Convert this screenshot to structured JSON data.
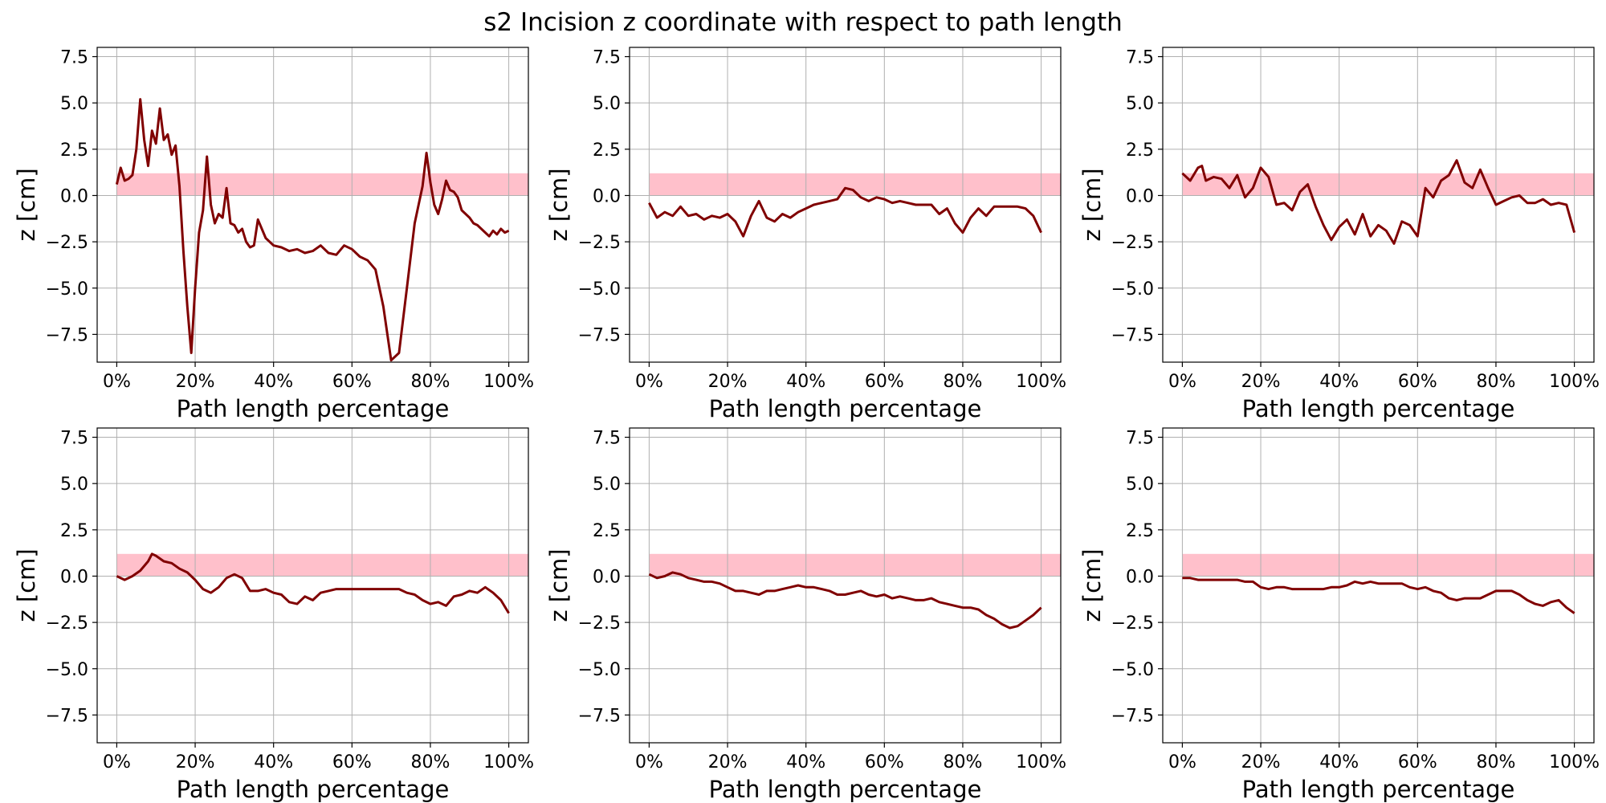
{
  "title": "s2 Incision z coordinate with respect to path length",
  "chart_data": [
    {
      "type": "line",
      "xlabel": "Path length percentage",
      "ylabel": "z [cm]",
      "xlim": [
        -5,
        105
      ],
      "ylim": [
        -9,
        8
      ],
      "xticks": [
        "0%",
        "20%",
        "40%",
        "60%",
        "80%",
        "100%"
      ],
      "yticks": [
        "7.5",
        "5.0",
        "2.5",
        "0.0",
        "−2.5",
        "−5.0",
        "−7.5"
      ],
      "grid": true,
      "band": {
        "x": [
          0,
          105
        ],
        "y": [
          0,
          1.2
        ],
        "color": "#ffc0cb"
      },
      "series": [
        {
          "color": "#800000",
          "x": [
            0,
            1,
            2,
            3,
            4,
            5,
            6,
            7,
            8,
            9,
            10,
            11,
            12,
            13,
            14,
            15,
            16,
            17,
            18,
            19,
            20,
            21,
            22,
            23,
            24,
            25,
            26,
            27,
            28,
            29,
            30,
            31,
            32,
            33,
            34,
            35,
            36,
            38,
            40,
            42,
            44,
            46,
            48,
            50,
            52,
            54,
            56,
            58,
            60,
            62,
            64,
            66,
            68,
            70,
            72,
            74,
            76,
            78,
            79,
            80,
            81,
            82,
            83,
            84,
            85,
            86,
            87,
            88,
            89,
            90,
            91,
            92,
            93,
            94,
            95,
            96,
            97,
            98,
            99,
            100
          ],
          "y": [
            0.6,
            1.5,
            0.8,
            0.9,
            1.1,
            2.5,
            5.2,
            3,
            1.6,
            3.5,
            2.8,
            4.7,
            3,
            3.3,
            2.2,
            2.7,
            0.5,
            -3,
            -6,
            -8.5,
            -5,
            -2,
            -0.8,
            2.1,
            -0.5,
            -1.5,
            -1,
            -1.2,
            0.4,
            -1.5,
            -1.6,
            -2,
            -1.8,
            -2.5,
            -2.8,
            -2.7,
            -1.3,
            -2.3,
            -2.7,
            -2.8,
            -3,
            -2.9,
            -3.1,
            -3,
            -2.7,
            -3.1,
            -3.2,
            -2.7,
            -2.9,
            -3.3,
            -3.5,
            -4,
            -6,
            -8.9,
            -8.5,
            -5,
            -1.5,
            0.5,
            2.3,
            0.7,
            -0.5,
            -1,
            -0.2,
            0.8,
            0.3,
            0.2,
            -0.1,
            -0.8,
            -1,
            -1.2,
            -1.5,
            -1.6,
            -1.8,
            -2,
            -2.2,
            -1.9,
            -2.1,
            -1.8,
            -2,
            -1.9
          ]
        }
      ]
    },
    {
      "type": "line",
      "xlabel": "Path length percentage",
      "ylabel": "z [cm]",
      "xlim": [
        -5,
        105
      ],
      "ylim": [
        -9,
        8
      ],
      "xticks": [
        "0%",
        "20%",
        "40%",
        "60%",
        "80%",
        "100%"
      ],
      "yticks": [
        "7.5",
        "5.0",
        "2.5",
        "0.0",
        "−2.5",
        "−5.0",
        "−7.5"
      ],
      "grid": true,
      "band": {
        "x": [
          0,
          105
        ],
        "y": [
          0,
          1.2
        ],
        "color": "#ffc0cb"
      },
      "series": [
        {
          "color": "#800000",
          "x": [
            0,
            2,
            4,
            6,
            8,
            10,
            12,
            14,
            16,
            18,
            20,
            22,
            24,
            26,
            28,
            30,
            32,
            34,
            36,
            38,
            40,
            42,
            44,
            46,
            48,
            50,
            52,
            54,
            56,
            58,
            60,
            62,
            64,
            66,
            68,
            70,
            72,
            74,
            76,
            78,
            80,
            82,
            84,
            86,
            88,
            90,
            92,
            94,
            96,
            98,
            100
          ],
          "y": [
            -0.4,
            -1.2,
            -0.9,
            -1.1,
            -0.6,
            -1.1,
            -1,
            -1.3,
            -1.1,
            -1.2,
            -1,
            -1.4,
            -2.2,
            -1.1,
            -0.3,
            -1.2,
            -1.4,
            -1,
            -1.2,
            -0.9,
            -0.7,
            -0.5,
            -0.4,
            -0.3,
            -0.2,
            0.4,
            0.3,
            -0.1,
            -0.3,
            -0.1,
            -0.2,
            -0.4,
            -0.3,
            -0.4,
            -0.5,
            -0.5,
            -0.5,
            -1,
            -0.7,
            -1.5,
            -2,
            -1.2,
            -0.7,
            -1.1,
            -0.6,
            -0.6,
            -0.6,
            -0.6,
            -0.7,
            -1.1,
            -2
          ]
        }
      ]
    },
    {
      "type": "line",
      "xlabel": "Path length percentage",
      "ylabel": "z [cm]",
      "xlim": [
        -5,
        105
      ],
      "ylim": [
        -9,
        8
      ],
      "xticks": [
        "0%",
        "20%",
        "40%",
        "60%",
        "80%",
        "100%"
      ],
      "yticks": [
        "7.5",
        "5.0",
        "2.5",
        "0.0",
        "−2.5",
        "−5.0",
        "−7.5"
      ],
      "grid": true,
      "band": {
        "x": [
          0,
          105
        ],
        "y": [
          0,
          1.2
        ],
        "color": "#ffc0cb"
      },
      "series": [
        {
          "color": "#800000",
          "x": [
            0,
            2,
            4,
            5,
            6,
            8,
            10,
            12,
            14,
            16,
            18,
            20,
            22,
            24,
            26,
            28,
            30,
            32,
            34,
            36,
            38,
            40,
            42,
            44,
            46,
            48,
            50,
            52,
            54,
            56,
            58,
            60,
            62,
            64,
            66,
            68,
            70,
            72,
            74,
            76,
            78,
            80,
            82,
            84,
            86,
            88,
            90,
            92,
            94,
            96,
            98,
            100
          ],
          "y": [
            1.2,
            0.8,
            1.5,
            1.6,
            0.8,
            1,
            0.9,
            0.4,
            1.1,
            -0.1,
            0.4,
            1.5,
            1,
            -0.5,
            -0.4,
            -0.8,
            0.2,
            0.6,
            -0.6,
            -1.6,
            -2.4,
            -1.7,
            -1.3,
            -2.1,
            -1,
            -2.2,
            -1.6,
            -1.9,
            -2.6,
            -1.4,
            -1.6,
            -2.2,
            0.4,
            -0.1,
            0.8,
            1.1,
            1.9,
            0.7,
            0.4,
            1.4,
            0.4,
            -0.5,
            -0.3,
            -0.1,
            0,
            -0.4,
            -0.4,
            -0.2,
            -0.5,
            -0.4,
            -0.5,
            -2
          ]
        }
      ]
    },
    {
      "type": "line",
      "xlabel": "Path length percentage",
      "ylabel": "z [cm]",
      "xlim": [
        -5,
        105
      ],
      "ylim": [
        -9,
        8
      ],
      "xticks": [
        "0%",
        "20%",
        "40%",
        "60%",
        "80%",
        "100%"
      ],
      "yticks": [
        "7.5",
        "5.0",
        "2.5",
        "0.0",
        "−2.5",
        "−5.0",
        "−7.5"
      ],
      "grid": true,
      "band": {
        "x": [
          0,
          105
        ],
        "y": [
          0,
          1.2
        ],
        "color": "#ffc0cb"
      },
      "series": [
        {
          "color": "#800000",
          "x": [
            0,
            2,
            4,
            6,
            8,
            9,
            10,
            12,
            14,
            16,
            18,
            20,
            22,
            24,
            26,
            28,
            30,
            32,
            34,
            36,
            38,
            40,
            42,
            44,
            46,
            48,
            50,
            52,
            54,
            56,
            58,
            60,
            62,
            64,
            66,
            68,
            70,
            72,
            74,
            76,
            78,
            80,
            82,
            84,
            86,
            88,
            90,
            92,
            94,
            96,
            98,
            100
          ],
          "y": [
            0,
            -0.2,
            0,
            0.3,
            0.8,
            1.2,
            1.1,
            0.8,
            0.7,
            0.4,
            0.2,
            -0.2,
            -0.7,
            -0.9,
            -0.6,
            -0.1,
            0.1,
            -0.1,
            -0.8,
            -0.8,
            -0.7,
            -0.9,
            -1,
            -1.4,
            -1.5,
            -1.1,
            -1.3,
            -0.9,
            -0.8,
            -0.7,
            -0.7,
            -0.7,
            -0.7,
            -0.7,
            -0.7,
            -0.7,
            -0.7,
            -0.7,
            -0.9,
            -1,
            -1.3,
            -1.5,
            -1.4,
            -1.6,
            -1.1,
            -1,
            -0.8,
            -0.9,
            -0.6,
            -0.9,
            -1.3,
            -2
          ]
        }
      ]
    },
    {
      "type": "line",
      "xlabel": "Path length percentage",
      "ylabel": "z [cm]",
      "xlim": [
        -5,
        105
      ],
      "ylim": [
        -9,
        8
      ],
      "xticks": [
        "0%",
        "20%",
        "40%",
        "60%",
        "80%",
        "100%"
      ],
      "yticks": [
        "7.5",
        "5.0",
        "2.5",
        "0.0",
        "−2.5",
        "−5.0",
        "−7.5"
      ],
      "grid": true,
      "band": {
        "x": [
          0,
          105
        ],
        "y": [
          0,
          1.2
        ],
        "color": "#ffc0cb"
      },
      "series": [
        {
          "color": "#800000",
          "x": [
            0,
            2,
            4,
            6,
            8,
            10,
            12,
            14,
            16,
            18,
            20,
            22,
            24,
            26,
            28,
            30,
            32,
            34,
            36,
            38,
            40,
            42,
            44,
            46,
            48,
            50,
            52,
            54,
            56,
            58,
            60,
            62,
            64,
            66,
            68,
            70,
            72,
            74,
            76,
            78,
            80,
            82,
            84,
            86,
            88,
            90,
            92,
            94,
            96,
            98,
            100
          ],
          "y": [
            0.1,
            -0.1,
            0,
            0.2,
            0.1,
            -0.1,
            -0.2,
            -0.3,
            -0.3,
            -0.4,
            -0.6,
            -0.8,
            -0.8,
            -0.9,
            -1,
            -0.8,
            -0.8,
            -0.7,
            -0.6,
            -0.5,
            -0.6,
            -0.6,
            -0.7,
            -0.8,
            -1,
            -1,
            -0.9,
            -0.8,
            -1,
            -1.1,
            -1,
            -1.2,
            -1.1,
            -1.2,
            -1.3,
            -1.3,
            -1.2,
            -1.4,
            -1.5,
            -1.6,
            -1.7,
            -1.7,
            -1.8,
            -2.1,
            -2.3,
            -2.6,
            -2.8,
            -2.7,
            -2.4,
            -2.1,
            -1.7
          ]
        }
      ]
    },
    {
      "type": "line",
      "xlabel": "Path length percentage",
      "ylabel": "z [cm]",
      "xlim": [
        -5,
        105
      ],
      "ylim": [
        -9,
        8
      ],
      "xticks": [
        "0%",
        "20%",
        "40%",
        "60%",
        "80%",
        "100%"
      ],
      "yticks": [
        "7.5",
        "5.0",
        "2.5",
        "0.0",
        "−2.5",
        "−5.0",
        "−7.5"
      ],
      "grid": true,
      "band": {
        "x": [
          0,
          105
        ],
        "y": [
          0,
          1.2
        ],
        "color": "#ffc0cb"
      },
      "series": [
        {
          "color": "#800000",
          "x": [
            0,
            2,
            4,
            6,
            8,
            10,
            12,
            14,
            16,
            18,
            20,
            22,
            24,
            26,
            28,
            30,
            32,
            34,
            36,
            38,
            40,
            42,
            44,
            46,
            48,
            50,
            52,
            54,
            56,
            58,
            60,
            62,
            64,
            66,
            68,
            70,
            72,
            74,
            76,
            78,
            80,
            82,
            84,
            86,
            88,
            90,
            92,
            94,
            96,
            98,
            100
          ],
          "y": [
            -0.1,
            -0.1,
            -0.2,
            -0.2,
            -0.2,
            -0.2,
            -0.2,
            -0.2,
            -0.3,
            -0.3,
            -0.6,
            -0.7,
            -0.6,
            -0.6,
            -0.7,
            -0.7,
            -0.7,
            -0.7,
            -0.7,
            -0.6,
            -0.6,
            -0.5,
            -0.3,
            -0.4,
            -0.3,
            -0.4,
            -0.4,
            -0.4,
            -0.4,
            -0.6,
            -0.7,
            -0.6,
            -0.8,
            -0.9,
            -1.2,
            -1.3,
            -1.2,
            -1.2,
            -1.2,
            -1.0,
            -0.8,
            -0.8,
            -0.8,
            -1.0,
            -1.3,
            -1.5,
            -1.6,
            -1.4,
            -1.3,
            -1.7,
            -2
          ]
        }
      ]
    }
  ]
}
